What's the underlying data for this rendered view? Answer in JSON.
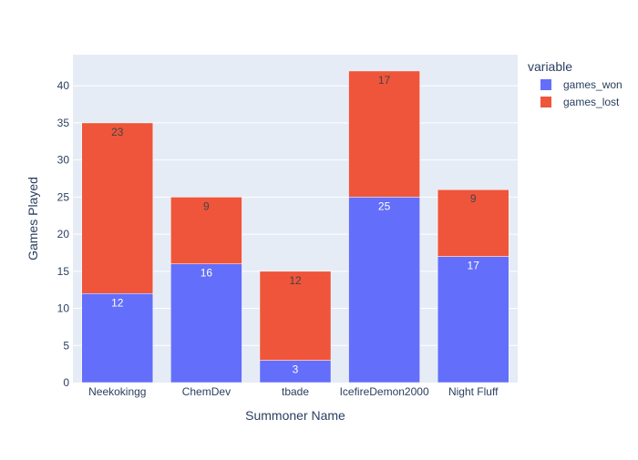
{
  "chart_data": {
    "type": "bar",
    "barmode": "stack",
    "categories": [
      "Neekokingg",
      "ChemDev",
      "tbade",
      "IcefireDemon2000",
      "Night Fluff"
    ],
    "series": [
      {
        "name": "games_won",
        "values": [
          12,
          16,
          3,
          25,
          17
        ],
        "color": "#636efa",
        "label_color": "#ffffff"
      },
      {
        "name": "games_lost",
        "values": [
          23,
          9,
          12,
          17,
          9
        ],
        "color": "#ef553b",
        "label_color": "#444444"
      }
    ],
    "xlabel": "Summoner Name",
    "ylabel": "Games Played",
    "ylim": [
      0,
      44.2
    ],
    "yticks": [
      0,
      5,
      10,
      15,
      20,
      25,
      30,
      35,
      40
    ],
    "grid": true,
    "legend": {
      "title": "variable",
      "placement": "top-right"
    },
    "plot_background": "#e5ecf6"
  }
}
